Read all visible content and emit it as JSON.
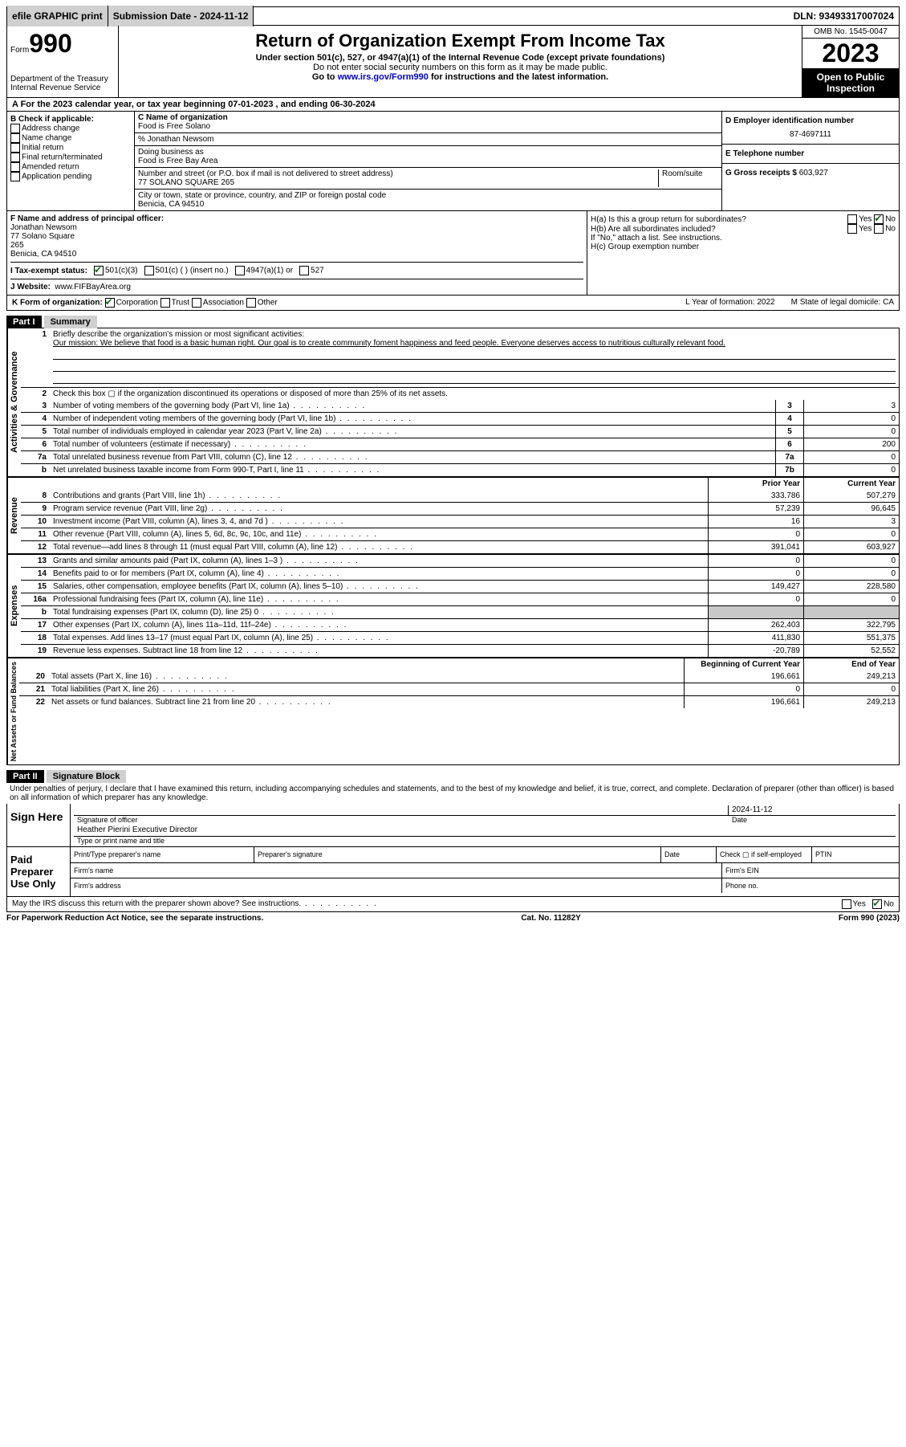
{
  "topbar": {
    "efile": "efile GRAPHIC print",
    "submission_label": "Submission Date - 2024-11-12",
    "dln": "DLN: 93493317007024"
  },
  "header": {
    "form_word": "Form",
    "form_no": "990",
    "title": "Return of Organization Exempt From Income Tax",
    "subtitle": "Under section 501(c), 527, or 4947(a)(1) of the Internal Revenue Code (except private foundations)",
    "ssn_note": "Do not enter social security numbers on this form as it may be made public.",
    "goto": "Go to ",
    "goto_link": "www.irs.gov/Form990",
    "goto_after": " for instructions and the latest information.",
    "dept": "Department of the Treasury\nInternal Revenue Service",
    "omb": "OMB No. 1545-0047",
    "year": "2023",
    "open": "Open to Public Inspection"
  },
  "sectionA": "A For the 2023 calendar year, or tax year beginning 07-01-2023   , and ending 06-30-2024",
  "B": {
    "label": "B Check if applicable:",
    "opts": [
      "Address change",
      "Name change",
      "Initial return",
      "Final return/terminated",
      "Amended return",
      "Application pending"
    ]
  },
  "C": {
    "label_name": "C Name of organization",
    "org": "Food is Free Solano",
    "care_of": "% Jonathan Newsom",
    "dba_label": "Doing business as",
    "dba": "Food is Free Bay Area",
    "street_label": "Number and street (or P.O. box if mail is not delivered to street address)",
    "room_label": "Room/suite",
    "street": "77 SOLANO SQUARE 265",
    "city_label": "City or town, state or province, country, and ZIP or foreign postal code",
    "city": "Benicia, CA  94510"
  },
  "D": {
    "label": "D Employer identification number",
    "value": "87-4697111"
  },
  "E": {
    "label": "E Telephone number",
    "value": ""
  },
  "G": {
    "label": "G Gross receipts $",
    "value": "603,927"
  },
  "F": {
    "label": "F  Name and address of principal officer:",
    "name": "Jonathan Newsom",
    "addr1": "77 Solano Square",
    "addr2": "265",
    "addr3": "Benicia, CA  94510"
  },
  "H": {
    "a": "H(a)  Is this a group return for subordinates?",
    "a_yes": "Yes",
    "a_no": "No",
    "b": "H(b)  Are all subordinates included?",
    "b_yes": "Yes",
    "b_no": "No",
    "b_note": "If \"No,\" attach a list. See instructions.",
    "c": "H(c)  Group exemption number"
  },
  "I": {
    "label": "I   Tax-exempt status:",
    "opt1": "501(c)(3)",
    "opt2": "501(c) (  ) (insert no.)",
    "opt3": "4947(a)(1) or",
    "opt4": "527"
  },
  "J": {
    "label": "J  Website:",
    "value": "www.FIFBayArea.org"
  },
  "K": {
    "label": "K Form of organization:",
    "opts": [
      "Corporation",
      "Trust",
      "Association",
      "Other"
    ],
    "L": "L Year of formation: 2022",
    "M": "M State of legal domicile: CA"
  },
  "partI": {
    "header": "Part I",
    "title": "Summary",
    "side_ag": "Activities & Governance",
    "side_rev": "Revenue",
    "side_exp": "Expenses",
    "side_net": "Net Assets or Fund Balances",
    "line1": "Briefly describe the organization's mission or most significant activities:",
    "mission": "Our mission: We believe that food is a basic human right. Our goal is to create community foment happiness and feed people. Everyone deserves access to nutritious culturally relevant food.",
    "line2": "Check this box ▢ if the organization discontinued its operations or disposed of more than 25% of its net assets.",
    "rows_ag": [
      {
        "n": "3",
        "d": "Number of voting members of the governing body (Part VI, line 1a)",
        "box": "3",
        "v": "3"
      },
      {
        "n": "4",
        "d": "Number of independent voting members of the governing body (Part VI, line 1b)",
        "box": "4",
        "v": "0"
      },
      {
        "n": "5",
        "d": "Total number of individuals employed in calendar year 2023 (Part V, line 2a)",
        "box": "5",
        "v": "0"
      },
      {
        "n": "6",
        "d": "Total number of volunteers (estimate if necessary)",
        "box": "6",
        "v": "200"
      },
      {
        "n": "7a",
        "d": "Total unrelated business revenue from Part VIII, column (C), line 12",
        "box": "7a",
        "v": "0"
      },
      {
        "n": "b",
        "d": "Net unrelated business taxable income from Form 990-T, Part I, line 11",
        "box": "7b",
        "v": "0"
      }
    ],
    "hdr_prior": "Prior Year",
    "hdr_curr": "Current Year",
    "rows_rev": [
      {
        "n": "8",
        "d": "Contributions and grants (Part VIII, line 1h)",
        "p": "333,786",
        "c": "507,279"
      },
      {
        "n": "9",
        "d": "Program service revenue (Part VIII, line 2g)",
        "p": "57,239",
        "c": "96,645"
      },
      {
        "n": "10",
        "d": "Investment income (Part VIII, column (A), lines 3, 4, and 7d )",
        "p": "16",
        "c": "3"
      },
      {
        "n": "11",
        "d": "Other revenue (Part VIII, column (A), lines 5, 6d, 8c, 9c, 10c, and 11e)",
        "p": "0",
        "c": "0"
      },
      {
        "n": "12",
        "d": "Total revenue—add lines 8 through 11 (must equal Part VIII, column (A), line 12)",
        "p": "391,041",
        "c": "603,927"
      }
    ],
    "rows_exp": [
      {
        "n": "13",
        "d": "Grants and similar amounts paid (Part IX, column (A), lines 1–3 )",
        "p": "0",
        "c": "0"
      },
      {
        "n": "14",
        "d": "Benefits paid to or for members (Part IX, column (A), line 4)",
        "p": "0",
        "c": "0"
      },
      {
        "n": "15",
        "d": "Salaries, other compensation, employee benefits (Part IX, column (A), lines 5–10)",
        "p": "149,427",
        "c": "228,580"
      },
      {
        "n": "16a",
        "d": "Professional fundraising fees (Part IX, column (A), line 11e)",
        "p": "0",
        "c": "0"
      },
      {
        "n": "b",
        "d": "Total fundraising expenses (Part IX, column (D), line 25) 0",
        "p": "",
        "c": "",
        "shade": true
      },
      {
        "n": "17",
        "d": "Other expenses (Part IX, column (A), lines 11a–11d, 11f–24e)",
        "p": "262,403",
        "c": "322,795"
      },
      {
        "n": "18",
        "d": "Total expenses. Add lines 13–17 (must equal Part IX, column (A), line 25)",
        "p": "411,830",
        "c": "551,375"
      },
      {
        "n": "19",
        "d": "Revenue less expenses. Subtract line 18 from line 12",
        "p": "-20,789",
        "c": "52,552"
      }
    ],
    "hdr_beg": "Beginning of Current Year",
    "hdr_end": "End of Year",
    "rows_net": [
      {
        "n": "20",
        "d": "Total assets (Part X, line 16)",
        "p": "196,661",
        "c": "249,213"
      },
      {
        "n": "21",
        "d": "Total liabilities (Part X, line 26)",
        "p": "0",
        "c": "0"
      },
      {
        "n": "22",
        "d": "Net assets or fund balances. Subtract line 21 from line 20",
        "p": "196,661",
        "c": "249,213"
      }
    ]
  },
  "partII": {
    "header": "Part II",
    "title": "Signature Block",
    "perjury": "Under penalties of perjury, I declare that I have examined this return, including accompanying schedules and statements, and to the best of my knowledge and belief, it is true, correct, and complete. Declaration of preparer (other than officer) is based on all information of which preparer has any knowledge.",
    "sign_here": "Sign Here",
    "sig_officer": "Signature of officer",
    "sig_name": "Heather Pierini  Executive Director",
    "sig_type": "Type or print name and title",
    "date_label": "Date",
    "date_val": "2024-11-12",
    "paid": "Paid Preparer Use Only",
    "prep_name": "Print/Type preparer's name",
    "prep_sig": "Preparer's signature",
    "prep_date": "Date",
    "check_self": "Check ▢ if self-employed",
    "ptin": "PTIN",
    "firm_name": "Firm's name",
    "firm_ein": "Firm's EIN",
    "firm_addr": "Firm's address",
    "phone": "Phone no.",
    "discuss": "May the IRS discuss this return with the preparer shown above? See instructions.",
    "yes": "Yes",
    "no": "No"
  },
  "footer": {
    "pra": "For Paperwork Reduction Act Notice, see the separate instructions.",
    "cat": "Cat. No. 11282Y",
    "form": "Form 990 (2023)"
  }
}
